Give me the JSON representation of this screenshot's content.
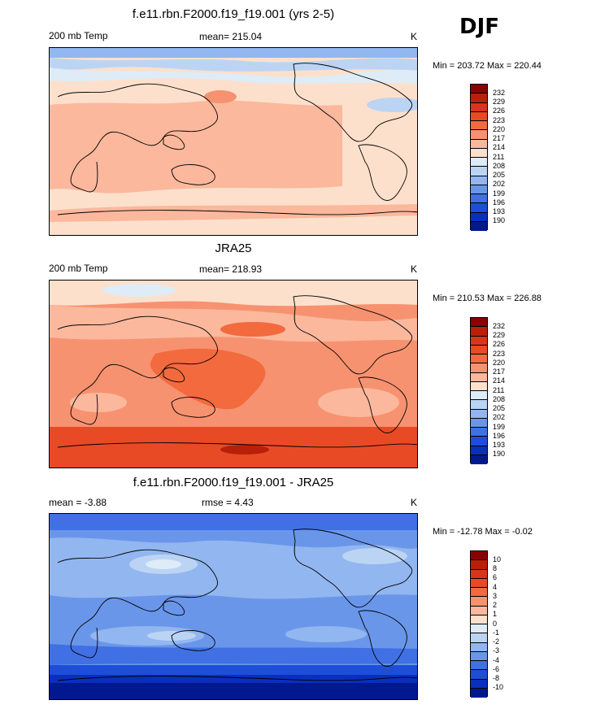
{
  "season": "DJF",
  "panels": [
    {
      "title": "f.e11.rbn.F2000.f19_f19.001 (yrs 2-5)",
      "left_label": "200 mb Temp",
      "center_label": "mean= 215.04",
      "units": "K",
      "minmax": "Min = 203.72 Max = 220.44",
      "colorbar_labels": [
        "232",
        "229",
        "226",
        "223",
        "220",
        "217",
        "214",
        "211",
        "208",
        "205",
        "202",
        "199",
        "196",
        "193",
        "190"
      ]
    },
    {
      "title": "JRA25",
      "left_label": "200 mb Temp",
      "center_label": "mean= 218.93",
      "units": "K",
      "minmax": "Min = 210.53 Max = 226.88",
      "colorbar_labels": [
        "232",
        "229",
        "226",
        "223",
        "220",
        "217",
        "214",
        "211",
        "208",
        "205",
        "202",
        "199",
        "196",
        "193",
        "190"
      ]
    },
    {
      "title": "f.e11.rbn.F2000.f19_f19.001 - JRA25",
      "left_label": "mean =  -3.88",
      "center_label": "rmse =   4.43",
      "units": "K",
      "minmax": "Min = -12.78 Max =  -0.02",
      "colorbar_labels": [
        "10",
        "8",
        "6",
        "4",
        "3",
        "2",
        "1",
        "0",
        "-1",
        "-2",
        "-3",
        "-4",
        "-6",
        "-8",
        "-10"
      ]
    }
  ],
  "colorbar_colors": [
    "#8b0000",
    "#b8200a",
    "#d8361c",
    "#e84a26",
    "#f26a3e",
    "#f79270",
    "#fbb89c",
    "#fde0cc",
    "#deecf8",
    "#bcd4f4",
    "#92b6f0",
    "#6a96ea",
    "#4070e4",
    "#1e4ed8",
    "#0a2fbe",
    "#00198f"
  ],
  "chart_data": [
    {
      "type": "heatmap",
      "title": "f.e11.rbn.F2000.f19_f19.001 (yrs 2-5)",
      "variable": "200 mb Temp",
      "units": "K",
      "mean": 215.04,
      "min": 203.72,
      "max": 220.44,
      "levels": [
        190,
        193,
        196,
        199,
        202,
        205,
        208,
        211,
        214,
        217,
        220,
        223,
        226,
        229,
        232
      ]
    },
    {
      "type": "heatmap",
      "title": "JRA25",
      "variable": "200 mb Temp",
      "units": "K",
      "mean": 218.93,
      "min": 210.53,
      "max": 226.88,
      "levels": [
        190,
        193,
        196,
        199,
        202,
        205,
        208,
        211,
        214,
        217,
        220,
        223,
        226,
        229,
        232
      ]
    },
    {
      "type": "heatmap",
      "title": "f.e11.rbn.F2000.f19_f19.001 - JRA25",
      "units": "K",
      "mean": -3.88,
      "rmse": 4.43,
      "min": -12.78,
      "max": -0.02,
      "levels": [
        -10,
        -8,
        -6,
        -4,
        -3,
        -2,
        -1,
        0,
        1,
        2,
        3,
        4,
        6,
        8,
        10
      ]
    }
  ]
}
